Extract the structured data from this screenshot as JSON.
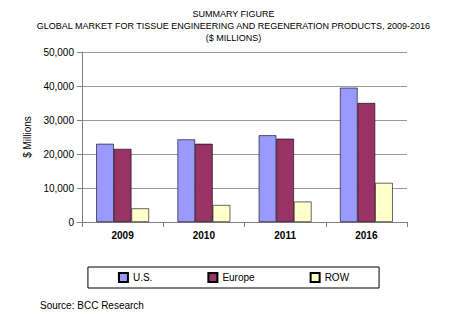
{
  "chart_data": {
    "type": "bar",
    "title": "SUMMARY FIGURE",
    "subtitle": [
      "GLOBAL MARKET FOR TISSUE ENGINEERING AND REGENERATION PRODUCTS, 2009-2016",
      "($ MILLIONS)"
    ],
    "y_label": "$ Millions",
    "annotations": [
      "Source: BCC Research"
    ],
    "categories": [
      "2009",
      "2010",
      "2011",
      "2016"
    ],
    "series": [
      {
        "name": "U.S.",
        "color": "#9999ff",
        "values": [
          23000,
          24300,
          25500,
          39500
        ]
      },
      {
        "name": "Europe",
        "color": "#993366",
        "values": [
          21500,
          23000,
          24500,
          35000
        ]
      },
      {
        "name": "ROW",
        "color": "#ffffcc",
        "values": [
          4000,
          5000,
          6000,
          11500
        ]
      }
    ],
    "ylim": [
      0,
      50000
    ],
    "yticks": [
      0,
      {
        "value": 10000,
        "label": "10,000"
      },
      {
        "value": 20000,
        "label": "20,000"
      },
      {
        "value": 30000,
        "label": "30,000"
      },
      {
        "value": 40000,
        "label": "40,000"
      },
      {
        "value": 50000,
        "label": "50,000"
      }
    ],
    "grid": true,
    "legend": "bottom"
  }
}
